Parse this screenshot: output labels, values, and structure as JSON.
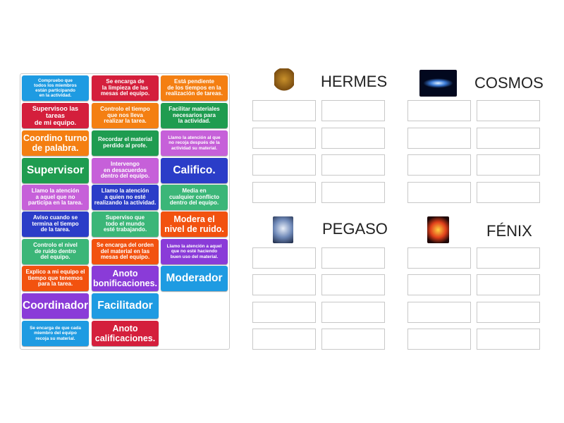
{
  "colors": {
    "blue": "#1e9be2",
    "red": "#d41f3c",
    "orange": "#f47f12",
    "green": "#1f9c50",
    "pink": "#c660d9",
    "darkblue": "#2b3dc8",
    "teal": "#3bb678",
    "orangered": "#f2520f",
    "violet": "#8a3bd8"
  },
  "tiles": [
    {
      "text": "Compruebo que\ntodos los miembros\nestán participando\nen la actividad.",
      "color": "blue",
      "size": "s1"
    },
    {
      "text": "Se encarga de\nla limpieza de las\nmesas del equipo.",
      "color": "red",
      "size": "s2"
    },
    {
      "text": "Está pendiente\nde los tiempos en la\nrealización de tareas.",
      "color": "orange",
      "size": "s2"
    },
    {
      "text": "Supervisoo las tareas\nde mi equipo.",
      "color": "red",
      "size": "s3"
    },
    {
      "text": "Controlo el tiempo\nque nos lleva\nrealizar la tarea.",
      "color": "orange",
      "size": "s2"
    },
    {
      "text": "Facilitar materiales\nnecesarios para\nla actividad.",
      "color": "green",
      "size": "s2"
    },
    {
      "text": "Coordino turno\nde palabra.",
      "color": "orange",
      "size": "s4"
    },
    {
      "text": "Recordar el material\nperdido al profe.",
      "color": "green",
      "size": "s2"
    },
    {
      "text": "Llamo la atención al que\nno recoja después de la\nactividad su material.",
      "color": "pink",
      "size": "s1"
    },
    {
      "text": "Supervisor",
      "color": "green",
      "size": "s5"
    },
    {
      "text": "Intervengo\nen desacuerdos\ndentro del equipo.",
      "color": "pink",
      "size": "s2"
    },
    {
      "text": "Califico.",
      "color": "darkblue",
      "size": "s5"
    },
    {
      "text": "Llamo la atención\na aquel que no\nparticipa en la tarea.",
      "color": "pink",
      "size": "s2"
    },
    {
      "text": "Llamo la atención\na quien no esté\nrealizando la actividad.",
      "color": "darkblue",
      "size": "s2"
    },
    {
      "text": "Media en\ncualquier conflicto\ndentro del equipo.",
      "color": "teal",
      "size": "s2"
    },
    {
      "text": "Aviso cuando se\ntermina el tiempo\nde la tarea.",
      "color": "darkblue",
      "size": "s2"
    },
    {
      "text": "Superviso que\ntodo el mundo\nesté trabajando.",
      "color": "teal",
      "size": "s2"
    },
    {
      "text": "Modera el\nnivel de ruido.",
      "color": "orangered",
      "size": "s4"
    },
    {
      "text": "Controlo el nivel\nde ruido dentro\ndel equipo.",
      "color": "teal",
      "size": "s2"
    },
    {
      "text": "Se encarga del orden\ndel material en las\nmesas del equipo.",
      "color": "orangered",
      "size": "s2"
    },
    {
      "text": "Llamo la atención a aquel\nque no esté haciendo\nbuen uso del material.",
      "color": "violet",
      "size": "s1"
    },
    {
      "text": "Explico a mi equipo el\ntiempo que tenemos\npara la tarea.",
      "color": "orangered",
      "size": "s2"
    },
    {
      "text": "Anoto\nbonificaciones.",
      "color": "violet",
      "size": "s4"
    },
    {
      "text": "Moderador",
      "color": "blue",
      "size": "s5"
    },
    {
      "text": "Coordinador",
      "color": "violet",
      "size": "s5"
    },
    {
      "text": "Facilitador",
      "color": "blue",
      "size": "s5"
    },
    {
      "text": "Se encarga de que cada\nmiembro del equipo\nrecoja su material.",
      "color": "blue",
      "size": "s1"
    },
    {
      "text": "Anoto\ncalificaciones.",
      "color": "red",
      "size": "s4"
    }
  ],
  "groups": [
    {
      "title": "HERMES",
      "image": "hermes-figure"
    },
    {
      "title": "COSMOS",
      "image": "galaxy"
    },
    {
      "title": "PEGASO",
      "image": "pegasus"
    },
    {
      "title": "FÉNIX",
      "image": "phoenix"
    }
  ]
}
